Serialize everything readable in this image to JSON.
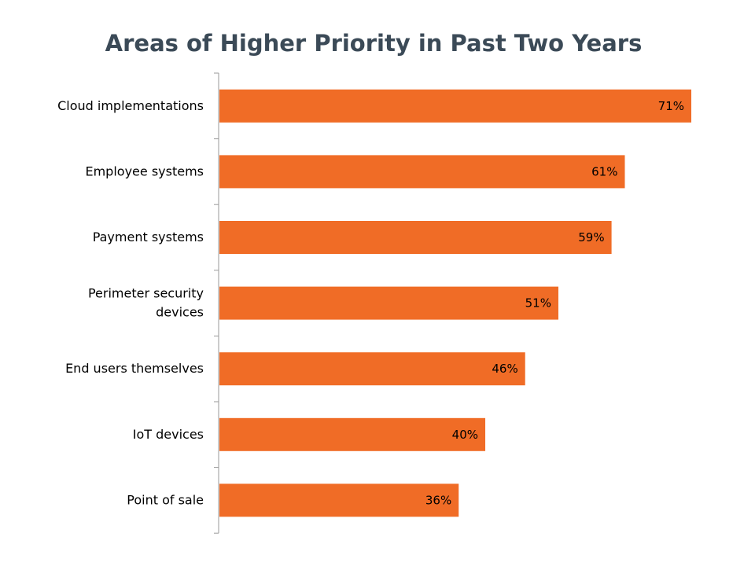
{
  "chart_data": {
    "type": "bar",
    "orientation": "horizontal",
    "title": "Areas of Higher Priority in Past Two Years",
    "categories": [
      "Cloud implementations",
      "Employee systems",
      "Payment systems",
      "Perimeter security devices",
      "End users themselves",
      "IoT devices",
      "Point of sale"
    ],
    "category_lines": [
      [
        "Cloud implementations"
      ],
      [
        "Employee systems"
      ],
      [
        "Payment systems"
      ],
      [
        "Perimeter security",
        "devices"
      ],
      [
        "End users themselves"
      ],
      [
        "IoT devices"
      ],
      [
        "Point of sale"
      ]
    ],
    "values": [
      71,
      61,
      59,
      51,
      46,
      40,
      36
    ],
    "value_labels": [
      "71%",
      "61%",
      "59%",
      "51%",
      "46%",
      "40%",
      "36%"
    ],
    "xlabel": "",
    "ylabel": "",
    "xlim": [
      0,
      71
    ],
    "grid": false,
    "legend": "none",
    "bar_color": "#f06c26",
    "axis_color": "#9a9a9a"
  }
}
